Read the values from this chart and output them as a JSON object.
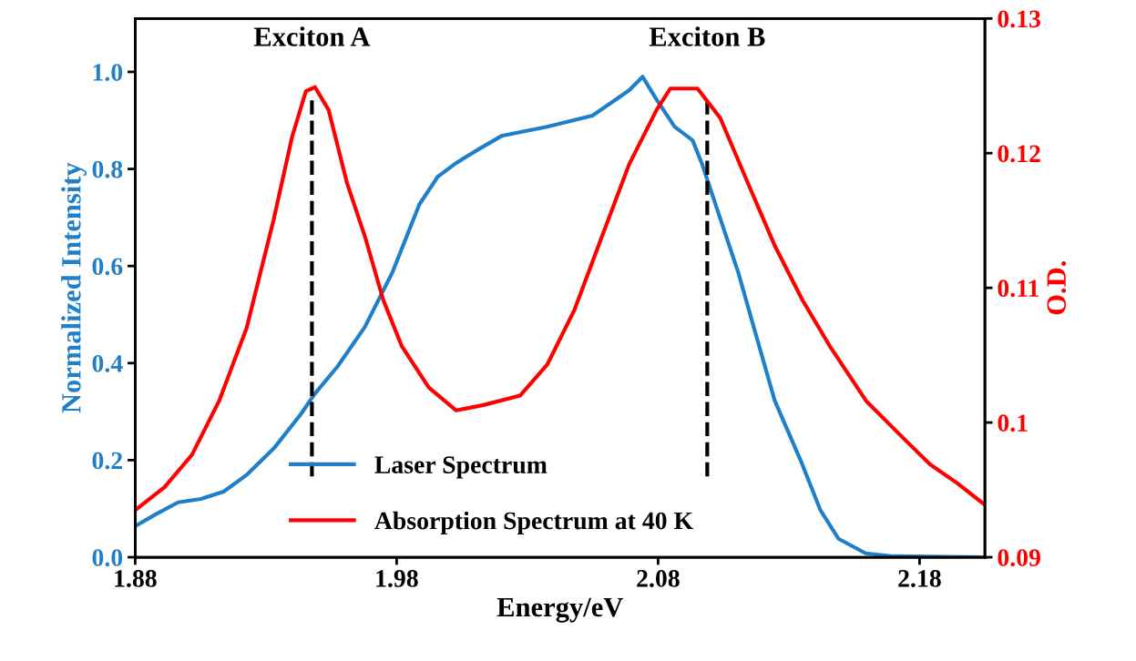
{
  "chart_data": {
    "type": "line",
    "xlabel": "Energy/eV",
    "ylabel": "Normalized Intensity",
    "y2label": "O.D.",
    "xlim": [
      1.88,
      2.205
    ],
    "xticks": [
      1.88,
      1.98,
      2.08,
      2.18
    ],
    "ylim": [
      0,
      1.11
    ],
    "yticks": [
      {
        "value": 0,
        "label": "0.0"
      },
      0.2,
      0.4,
      0.6,
      0.8,
      {
        "value": 1,
        "label": "1.0"
      }
    ],
    "y2lim": [
      0.09,
      0.13
    ],
    "y2ticks": [
      0.09,
      {
        "value": 0.1,
        "label": "0.1"
      },
      0.11,
      0.12,
      0.13
    ],
    "series": [
      {
        "name": "Laser Spectrum",
        "color": "#1f7fc9",
        "x": [
          1.88,
          1.8877,
          1.8964,
          1.9051,
          1.9138,
          1.9225,
          1.933,
          1.9434,
          1.9486,
          1.9574,
          1.9678,
          1.9783,
          1.9887,
          1.9957,
          2.0027,
          2.0096,
          2.0201,
          2.0375,
          2.0549,
          2.0689,
          2.0741,
          2.0793,
          2.0863,
          2.0932,
          2.0967,
          2.1037,
          2.1107,
          2.1176,
          2.1246,
          2.1351,
          2.142,
          2.149,
          2.1594,
          2.1699,
          2.2047
        ],
        "values": [
          0.064,
          0.088,
          0.113,
          0.12,
          0.135,
          0.169,
          0.224,
          0.295,
          0.336,
          0.393,
          0.474,
          0.586,
          0.727,
          0.784,
          0.812,
          0.835,
          0.868,
          0.887,
          0.91,
          0.962,
          0.99,
          0.944,
          0.887,
          0.859,
          0.812,
          0.699,
          0.586,
          0.455,
          0.323,
          0.192,
          0.098,
          0.038,
          0.008,
          0.002,
          0.0
        ]
      },
      {
        "name": "Absorption Spectrum at 40 K",
        "color": "#ff0000",
        "axis": "y2",
        "x": [
          1.88,
          1.8912,
          1.9017,
          1.9121,
          1.9226,
          1.933,
          1.94,
          1.9453,
          1.9488,
          1.954,
          1.961,
          1.9679,
          1.9749,
          1.9819,
          1.9923,
          2.0028,
          2.0132,
          2.0272,
          2.0376,
          2.0481,
          2.0585,
          2.069,
          2.0794,
          2.0847,
          2.0951,
          2.1038,
          2.1143,
          2.1247,
          2.1352,
          2.1456,
          2.1596,
          2.1735,
          2.184,
          2.1944,
          2.2049
        ],
        "values": [
          0.0935,
          0.0952,
          0.0976,
          0.1016,
          0.107,
          0.1151,
          0.1212,
          0.1246,
          0.1249,
          0.1232,
          0.1178,
          0.1138,
          0.1091,
          0.1057,
          0.1026,
          0.1009,
          0.1013,
          0.102,
          0.1043,
          0.1084,
          0.1138,
          0.1192,
          0.1232,
          0.1248,
          0.1248,
          0.1226,
          0.1178,
          0.1131,
          0.1091,
          0.1057,
          0.1016,
          0.0989,
          0.0969,
          0.0955,
          0.0939
        ]
      }
    ],
    "ref_lines": [
      {
        "axis": "x",
        "value": 1.9476,
        "label": "Exciton A",
        "color": "#000000",
        "line_style": "dashed"
      },
      {
        "axis": "x",
        "value": 2.0988,
        "label": "Exciton B",
        "color": "#000000",
        "line_style": "dashed"
      }
    ],
    "legend": "bottom",
    "grid": false
  }
}
